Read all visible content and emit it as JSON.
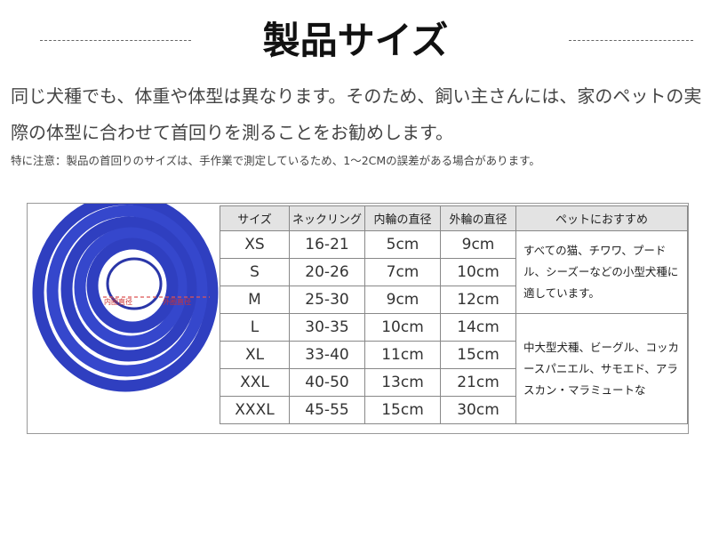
{
  "header": {
    "title": "製品サイズ"
  },
  "intro": {
    "text": "同じ犬種でも、体重や体型は異なります。そのため、飼い主さんには、家のペットの実際の体型に合わせて首回りを測ることをお勧めします。",
    "note": "特に注意：製品の首回りのサイズは、手作業で測定しているため、1〜2CMの誤差がある場合があります。"
  },
  "photo": {
    "inner_label": "内圈直径",
    "outer_label": "外圈直径"
  },
  "table": {
    "columns": [
      "サイズ",
      "ネックリング",
      "内輪の直径",
      "外輪の直径",
      "ペットにおすすめ"
    ],
    "rows": [
      [
        "XS",
        "16-21",
        "5cm",
        "9cm"
      ],
      [
        "S",
        "20-26",
        "7cm",
        "10cm"
      ],
      [
        "M",
        "25-30",
        "9cm",
        "12cm"
      ],
      [
        "L",
        "30-35",
        "10cm",
        "14cm"
      ],
      [
        "XL",
        "33-40",
        "11cm",
        "15cm"
      ],
      [
        "XXL",
        "40-50",
        "13cm",
        "21cm"
      ],
      [
        "XXXL",
        "45-55",
        "15cm",
        "30cm"
      ]
    ],
    "recommendations": [
      "すべての猫、チワワ、プードル、シーズーなどの小型犬種に適しています。",
      "中大型犬種、ビーグル、コッカースパニエル、サモエド、アラスカン・マラミュートな"
    ]
  }
}
